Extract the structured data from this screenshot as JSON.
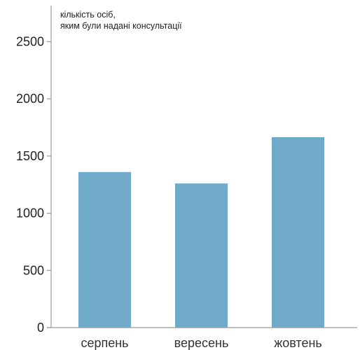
{
  "chart_data": {
    "type": "bar",
    "ylabel": [
      "кількість осіб,",
      "яким були надані консультації"
    ],
    "categories": [
      "серпень",
      "вересень",
      "жовтень"
    ],
    "values": [
      1360,
      1260,
      1665
    ],
    "ylim": [
      0,
      2700
    ],
    "yticks": [
      0,
      500,
      1000,
      1500,
      2000,
      2500
    ],
    "bar_color": "#6faac9",
    "axis_color": "#999999",
    "grid": false
  }
}
